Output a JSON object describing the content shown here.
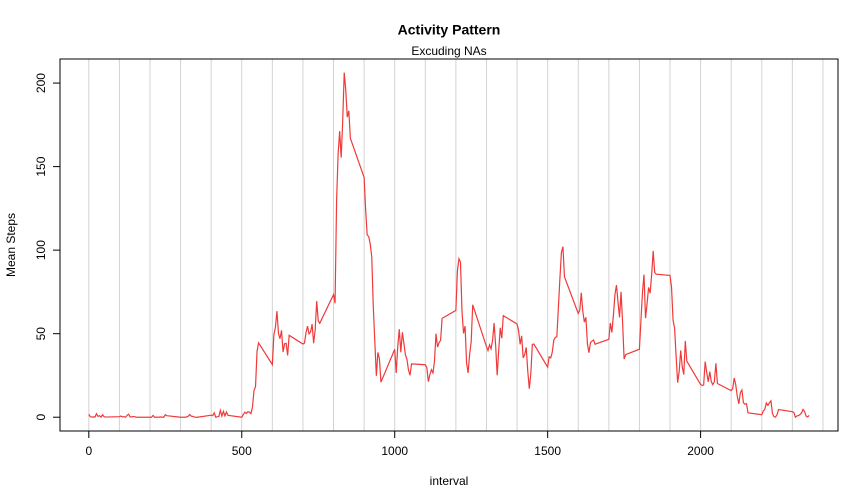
{
  "chart_data": {
    "type": "line",
    "title": "Activity Pattern",
    "subtitle": "Excuding NAs",
    "xlabel": "interval",
    "ylabel": "Mean Steps",
    "xlim": [
      -94.2,
      2449.2
    ],
    "ylim": [
      -8.25,
      214.4
    ],
    "xticks": [
      0,
      500,
      1000,
      1500,
      2000
    ],
    "yticks": [
      0,
      50,
      100,
      150,
      200
    ],
    "xgrid": [
      0,
      100,
      200,
      300,
      400,
      500,
      600,
      700,
      800,
      900,
      1000,
      1100,
      1200,
      1300,
      1400,
      1500,
      1600,
      1700,
      1800,
      1900,
      2000,
      2100,
      2200,
      2300,
      2400
    ],
    "grid": true,
    "x": [
      0,
      5,
      10,
      15,
      20,
      25,
      30,
      35,
      40,
      45,
      50,
      55,
      100,
      105,
      110,
      115,
      120,
      125,
      130,
      135,
      140,
      145,
      150,
      155,
      200,
      205,
      210,
      215,
      220,
      225,
      230,
      235,
      240,
      245,
      250,
      255,
      300,
      305,
      310,
      315,
      320,
      325,
      330,
      335,
      340,
      345,
      350,
      355,
      400,
      405,
      410,
      415,
      420,
      425,
      430,
      435,
      440,
      445,
      450,
      455,
      500,
      505,
      510,
      515,
      520,
      525,
      530,
      535,
      540,
      545,
      550,
      555,
      600,
      605,
      610,
      615,
      620,
      625,
      630,
      635,
      640,
      645,
      650,
      655,
      700,
      705,
      710,
      715,
      720,
      725,
      730,
      735,
      740,
      745,
      750,
      755,
      800,
      805,
      810,
      815,
      820,
      825,
      830,
      835,
      840,
      845,
      850,
      855,
      900,
      905,
      910,
      915,
      920,
      925,
      930,
      935,
      940,
      945,
      950,
      955,
      1000,
      1005,
      1010,
      1015,
      1020,
      1025,
      1030,
      1035,
      1040,
      1045,
      1050,
      1055,
      1100,
      1105,
      1110,
      1115,
      1120,
      1125,
      1130,
      1135,
      1140,
      1145,
      1150,
      1155,
      1200,
      1205,
      1210,
      1215,
      1220,
      1225,
      1230,
      1235,
      1240,
      1245,
      1250,
      1255,
      1300,
      1305,
      1310,
      1315,
      1320,
      1325,
      1330,
      1335,
      1340,
      1345,
      1350,
      1355,
      1400,
      1405,
      1410,
      1415,
      1420,
      1425,
      1430,
      1435,
      1440,
      1445,
      1450,
      1455,
      1500,
      1505,
      1510,
      1515,
      1520,
      1525,
      1530,
      1535,
      1540,
      1545,
      1550,
      1555,
      1600,
      1605,
      1610,
      1615,
      1620,
      1625,
      1630,
      1635,
      1640,
      1645,
      1650,
      1655,
      1700,
      1705,
      1710,
      1715,
      1720,
      1725,
      1730,
      1735,
      1740,
      1745,
      1750,
      1755,
      1800,
      1805,
      1810,
      1815,
      1820,
      1825,
      1830,
      1835,
      1840,
      1845,
      1850,
      1855,
      1900,
      1905,
      1910,
      1915,
      1920,
      1925,
      1930,
      1935,
      1940,
      1945,
      1950,
      1955,
      2000,
      2005,
      2010,
      2015,
      2020,
      2025,
      2030,
      2035,
      2040,
      2045,
      2050,
      2055,
      2100,
      2105,
      2110,
      2115,
      2120,
      2125,
      2130,
      2135,
      2140,
      2145,
      2150,
      2155,
      2200,
      2205,
      2210,
      2215,
      2220,
      2225,
      2230,
      2235,
      2240,
      2245,
      2250,
      2255,
      2300,
      2305,
      2310,
      2315,
      2320,
      2325,
      2330,
      2335,
      2340,
      2345,
      2350,
      2355
    ],
    "series": [
      {
        "name": "Mean Steps",
        "color": "#f03a3a",
        "values": [
          1.7,
          0.3,
          0.1,
          0.2,
          0.1,
          2.1,
          0.5,
          0.9,
          0,
          1.5,
          0.3,
          0.1,
          0.3,
          0.7,
          0.2,
          0.3,
          0,
          1.1,
          1.8,
          0.2,
          0.2,
          0.4,
          0.3,
          0,
          0,
          0,
          1.1,
          0,
          0,
          0.1,
          0,
          0.2,
          0,
          0,
          1.5,
          0.9,
          0,
          0,
          0,
          0,
          0.2,
          0.6,
          1.6,
          0.6,
          0.5,
          0.1,
          0,
          0,
          1.2,
          0.9,
          2.6,
          0,
          0.3,
          0.4,
          4.1,
          0.7,
          3.5,
          0.8,
          3.1,
          1.1,
          0,
          1.6,
          3,
          2.2,
          3.3,
          3,
          2.1,
          6,
          16,
          18.3,
          39.5,
          44.5,
          31.5,
          49.3,
          53.8,
          63.5,
          50,
          47,
          52,
          39,
          44,
          44.2,
          37,
          49,
          43.8,
          44.4,
          50.5,
          54.5,
          49.9,
          51,
          55.7,
          44.3,
          52.3,
          69.5,
          57.8,
          56.2,
          73.4,
          68.2,
          129.4,
          157.5,
          171.2,
          155.4,
          177.3,
          206.2,
          195.9,
          179.6,
          183.4,
          167,
          143.5,
          124,
          109.1,
          108.1,
          103.7,
          95.9,
          66.2,
          45.2,
          24.8,
          38.8,
          35,
          21,
          40.6,
          26.5,
          42.4,
          52.7,
          38.9,
          50.8,
          44.3,
          37.4,
          34.7,
          28.3,
          25.1,
          31.9,
          31.4,
          29.7,
          21.3,
          25.5,
          28.4,
          26.5,
          33.4,
          50,
          42,
          44.6,
          46,
          59.2,
          63.9,
          87.7,
          94.8,
          92.8,
          63.4,
          50.2,
          54.5,
          32.4,
          26.5,
          37.7,
          45.1,
          67.3,
          42.3,
          39.9,
          43.3,
          40.9,
          46.2,
          56.4,
          42.8,
          25.1,
          40,
          53.5,
          47.3,
          60.8,
          55.8,
          51.9,
          43.6,
          48.7,
          35.5,
          37.5,
          41.8,
          27.5,
          17.1,
          26.1,
          43.6,
          43.8,
          30,
          36.1,
          35.5,
          38.8,
          46,
          47.8,
          48.1,
          65.3,
          82.9,
          98.7,
          102.1,
          84,
          62.1,
          64.1,
          74.5,
          63.2,
          56.9,
          59.8,
          43.9,
          38.6,
          44.7,
          45.5,
          46.2,
          43.7,
          46.6,
          56.3,
          50.7,
          61.2,
          73.4,
          79.1,
          68.9,
          59.7,
          75.1,
          56.5,
          34.8,
          37.5,
          40.7,
          58,
          74.7,
          85.3,
          59.3,
          67.8,
          77.7,
          74.2,
          85.3,
          99.5,
          86.6,
          85.6,
          84.9,
          77.8,
          58,
          53.4,
          36.3,
          20.7,
          27.4,
          40,
          30.2,
          25.5,
          45.7,
          33.5,
          19.6,
          19,
          19.3,
          33.3,
          26.8,
          21.2,
          27.3,
          21.3,
          19.5,
          21.3,
          32.3,
          20.2,
          15.9,
          17.2,
          23.5,
          19.2,
          12.5,
          8,
          14.7,
          16.3,
          8.7,
          7.8,
          8.1,
          2.6,
          1.5,
          3.7,
          4.8,
          8.5,
          7.1,
          8.7,
          9.8,
          2.2,
          0.3,
          0.1,
          1.6,
          4.6,
          3.3,
          2.8,
          0,
          0.8,
          1,
          1.6,
          2.6,
          4.7,
          3.3,
          0.6,
          0.2,
          1.1
        ]
      }
    ]
  }
}
